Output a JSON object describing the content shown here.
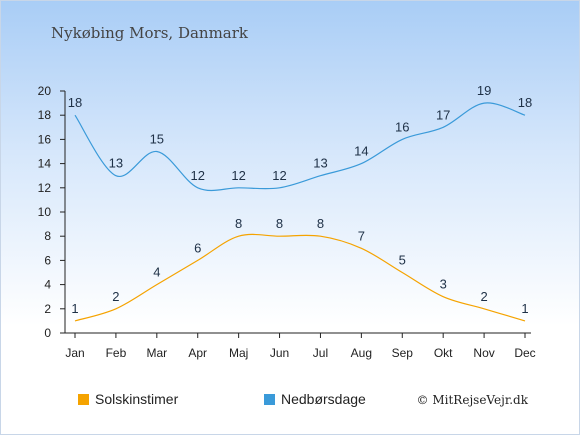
{
  "title": "Nykøbing Mors, Danmark",
  "credit": "© MitRejseVejr.dk",
  "chart_data": {
    "type": "line",
    "categories": [
      "Jan",
      "Feb",
      "Mar",
      "Apr",
      "Maj",
      "Jun",
      "Jul",
      "Aug",
      "Sep",
      "Okt",
      "Nov",
      "Dec"
    ],
    "series": [
      {
        "name": "Solskinstimer",
        "color": "#f5a300",
        "values": [
          1,
          2,
          4,
          6,
          8,
          8,
          8,
          7,
          5,
          3,
          2,
          1
        ]
      },
      {
        "name": "Nedbørsdage",
        "color": "#3a9ad9",
        "values": [
          18,
          13,
          15,
          12,
          12,
          12,
          13,
          14,
          16,
          17,
          19,
          18
        ]
      }
    ],
    "ylim": [
      0,
      20
    ],
    "yticks": [
      0,
      2,
      4,
      6,
      8,
      10,
      12,
      14,
      16,
      18,
      20
    ],
    "grid": false,
    "legend": "bottom"
  }
}
